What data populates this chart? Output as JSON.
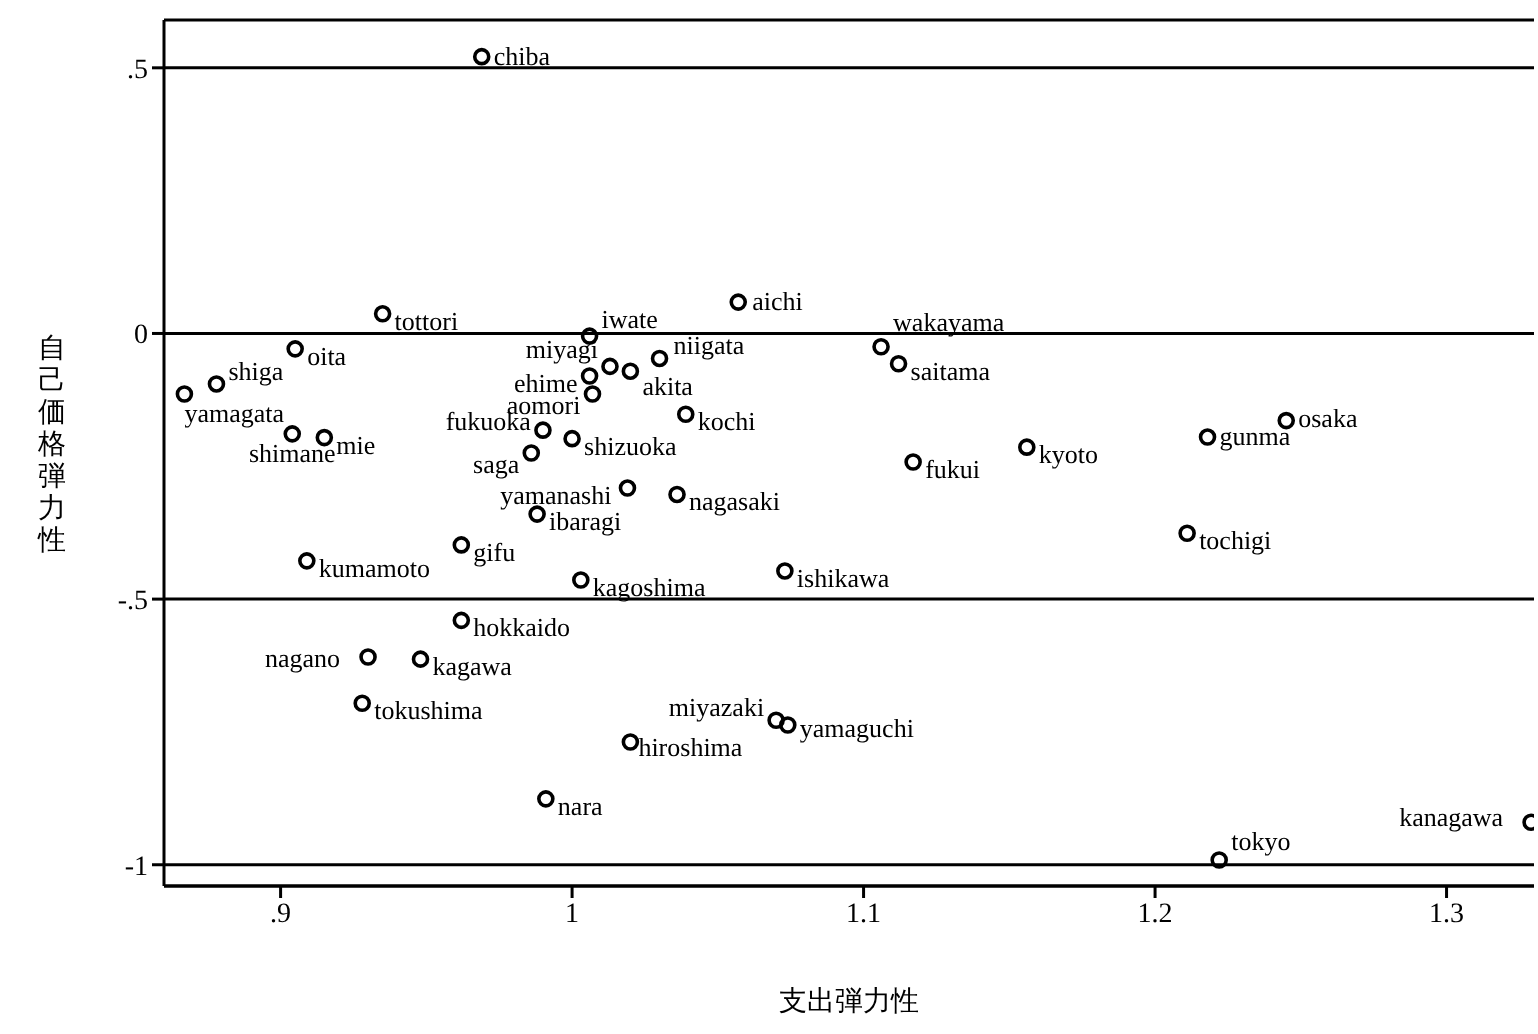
{
  "chart_data": {
    "type": "scatter",
    "xlabel": "支出弾力性",
    "ylabel": "自己価格弾力性",
    "xlim": [
      0.86,
      1.33
    ],
    "ylim": [
      -1.04,
      0.59
    ],
    "xticks": [
      {
        "value": 0.9,
        "label": ".9"
      },
      1,
      1.1,
      1.2,
      1.3
    ],
    "yticks": [
      {
        "value": -1,
        "label": "-1"
      },
      {
        "value": -0.5,
        "label": "-.5"
      },
      0,
      {
        "value": 0.5,
        "label": ".5"
      }
    ],
    "grid": "y",
    "legend": false,
    "marker": "circle",
    "series": [
      {
        "color": "#000000",
        "x": [
          0.969,
          0.935,
          1.057,
          1.006,
          0.905,
          0.878,
          0.867,
          1.013,
          1.02,
          1.03,
          1.006,
          1.007,
          1.039,
          0.904,
          0.915,
          0.99,
          1.0,
          0.986,
          1.019,
          1.036,
          1.106,
          1.112,
          1.245,
          1.218,
          1.156,
          1.117,
          1.211,
          0.988,
          0.962,
          0.909,
          1.003,
          1.073,
          0.962,
          0.93,
          0.948,
          0.928,
          1.07,
          1.074,
          1.02,
          0.991,
          1.222,
          1.329
        ],
        "values": [
          0.521,
          0.037,
          0.059,
          -0.005,
          -0.029,
          -0.095,
          -0.114,
          -0.062,
          -0.071,
          -0.047,
          -0.08,
          -0.114,
          -0.152,
          -0.189,
          -0.196,
          -0.182,
          -0.198,
          -0.225,
          -0.291,
          -0.303,
          -0.025,
          -0.057,
          -0.164,
          -0.195,
          -0.214,
          -0.242,
          -0.376,
          -0.34,
          -0.398,
          -0.428,
          -0.464,
          -0.447,
          -0.54,
          -0.609,
          -0.613,
          -0.696,
          -0.728,
          -0.737,
          -0.769,
          -0.876,
          -0.991,
          -0.92
        ],
        "value_labels": [
          "chiba",
          "tottori",
          "aichi",
          "iwate",
          "oita",
          "shiga",
          "yamagata",
          "miyagi",
          "akita",
          "niigata",
          "ehime",
          "aomori",
          "kochi",
          "shimane",
          "mie",
          "fukuoka",
          "shizuoka",
          "saga",
          "yamanashi",
          "nagasaki",
          "wakayama",
          "saitama",
          "osaka",
          "gunma",
          "kyoto",
          "fukui",
          "tochigi",
          "ibaragi",
          "gifu",
          "kumamoto",
          "kagoshima",
          "ishikawa",
          "hokkaido",
          "nagano",
          "kagawa",
          "tokushima",
          "miyazaki",
          "yamaguchi",
          "hiroshima",
          "nara",
          "tokyo",
          "kanagawa"
        ]
      }
    ]
  }
}
